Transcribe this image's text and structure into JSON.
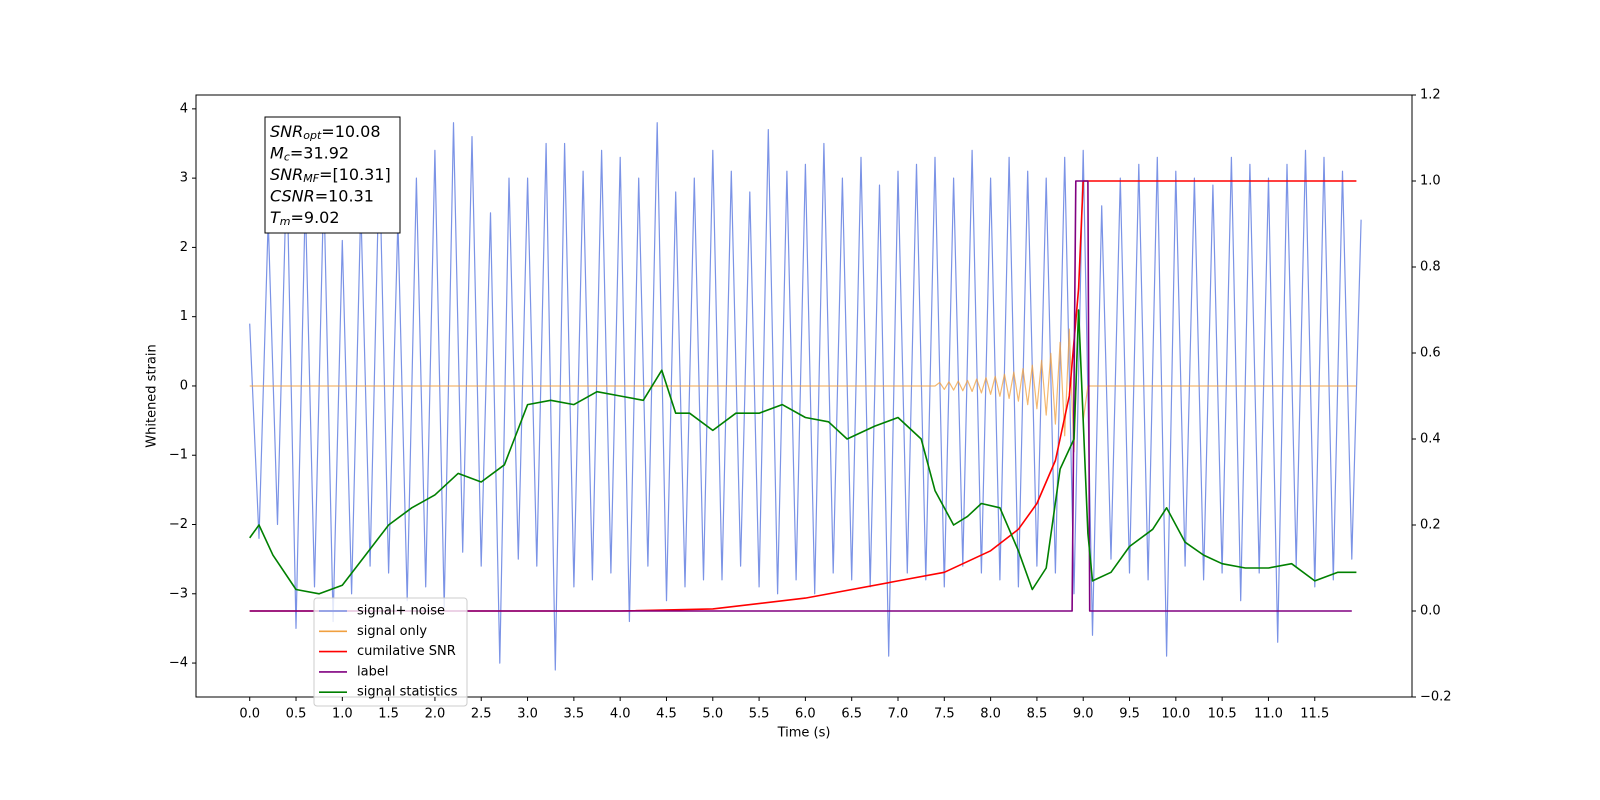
{
  "chart_data": {
    "type": "line",
    "xlabel": "Time (s)",
    "ylabel": "Whitened strain",
    "xlim": [
      -0.58,
      12.55
    ],
    "ylim": [
      -4.49,
      4.2
    ],
    "y2lim": [
      -0.2,
      1.2
    ],
    "xticks": [
      {
        "value": 0,
        "label": "0.0"
      },
      0.5,
      {
        "value": 1,
        "label": "1.0"
      },
      1.5,
      {
        "value": 2,
        "label": "2.0"
      },
      2.5,
      {
        "value": 3,
        "label": "3.0"
      },
      3.5,
      {
        "value": 4,
        "label": "4.0"
      },
      4.5,
      {
        "value": 5,
        "label": "5.0"
      },
      5.5,
      {
        "value": 6,
        "label": "6.0"
      },
      6.5,
      {
        "value": 7,
        "label": "7.0"
      },
      7.5,
      {
        "value": 8,
        "label": "8.0"
      },
      8.5,
      {
        "value": 9,
        "label": "9.0"
      },
      9.5,
      {
        "value": 10,
        "label": "10.0"
      },
      10.5,
      {
        "value": 11,
        "label": "11.0"
      },
      11.5
    ],
    "yticks": [
      {
        "value": -4,
        "label": "−4"
      },
      {
        "value": -3,
        "label": "−3"
      },
      {
        "value": -2,
        "label": "−2"
      },
      {
        "value": -1,
        "label": "−1"
      },
      0,
      1,
      2,
      3,
      4
    ],
    "y2ticks": [
      {
        "value": -0.2,
        "label": "−0.2"
      },
      {
        "value": 0,
        "label": "0.0"
      },
      0.2,
      0.4,
      0.6,
      0.8,
      {
        "value": 1,
        "label": "1.0"
      },
      1.2
    ],
    "annotation": [
      {
        "main": "SNR",
        "sub": "opt",
        "value": "=10.08"
      },
      {
        "main": "M",
        "sub": "c",
        "value": "=31.92"
      },
      {
        "main": "SNR",
        "sub": "MF",
        "value": "=[10.31]"
      },
      {
        "main": "CSNR",
        "sub": "",
        "value": "=10.31"
      },
      {
        "main": "T",
        "sub": "m",
        "value": "=9.02"
      }
    ],
    "series": [
      {
        "name": "signal+ noise",
        "color": "#7b93e6",
        "axis": "y",
        "x": [
          0.0,
          0.1,
          0.2,
          0.3,
          0.4,
          0.5,
          0.6,
          0.7,
          0.8,
          0.9,
          1.0,
          1.1,
          1.2,
          1.3,
          1.4,
          1.5,
          1.6,
          1.7,
          1.8,
          1.9,
          2.0,
          2.1,
          2.2,
          2.3,
          2.4,
          2.5,
          2.6,
          2.7,
          2.8,
          2.9,
          3.0,
          3.1,
          3.2,
          3.3,
          3.4,
          3.5,
          3.6,
          3.7,
          3.8,
          3.9,
          4.0,
          4.1,
          4.2,
          4.3,
          4.4,
          4.5,
          4.6,
          4.7,
          4.8,
          4.9,
          5.0,
          5.1,
          5.2,
          5.3,
          5.4,
          5.5,
          5.6,
          5.7,
          5.8,
          5.9,
          6.0,
          6.1,
          6.2,
          6.3,
          6.4,
          6.5,
          6.6,
          6.7,
          6.8,
          6.9,
          7.0,
          7.1,
          7.2,
          7.3,
          7.4,
          7.5,
          7.6,
          7.7,
          7.8,
          7.9,
          8.0,
          8.1,
          8.2,
          8.3,
          8.4,
          8.5,
          8.6,
          8.7,
          8.8,
          8.9,
          9.0,
          9.1,
          9.2,
          9.3,
          9.4,
          9.5,
          9.6,
          9.7,
          9.8,
          9.9,
          10.0,
          10.1,
          10.2,
          10.3,
          10.4,
          10.5,
          10.6,
          10.7,
          10.8,
          10.9,
          11.0,
          11.1,
          11.2,
          11.3,
          11.4,
          11.5,
          11.6,
          11.7,
          11.8,
          11.9,
          12.0
        ],
        "values": [
          0.9,
          -2.2,
          2.4,
          -2.0,
          3.2,
          -3.5,
          2.7,
          -2.9,
          2.9,
          -3.4,
          2.1,
          -3.0,
          2.6,
          -2.6,
          3.3,
          -2.7,
          2.4,
          -3.1,
          3.0,
          -2.9,
          3.4,
          -3.2,
          3.8,
          -2.4,
          3.6,
          -2.6,
          2.5,
          -4.0,
          3.0,
          -2.5,
          3.0,
          -2.6,
          3.5,
          -4.1,
          3.5,
          -2.9,
          3.1,
          -2.8,
          3.4,
          -2.7,
          3.3,
          -3.4,
          3.0,
          -2.6,
          3.8,
          -3.1,
          2.8,
          -2.9,
          3.0,
          -2.8,
          3.4,
          -2.8,
          3.1,
          -2.6,
          2.8,
          -2.9,
          3.7,
          -3.0,
          3.1,
          -2.8,
          3.2,
          -3.0,
          3.5,
          -2.7,
          3.0,
          -2.8,
          3.3,
          -2.9,
          2.9,
          -3.9,
          3.1,
          -2.7,
          3.2,
          -2.8,
          3.3,
          -2.9,
          3.0,
          -2.6,
          3.4,
          -2.7,
          3.0,
          -2.8,
          3.3,
          -2.9,
          3.1,
          -2.6,
          3.0,
          -2.7,
          3.3,
          -3.0,
          3.4,
          -3.6,
          2.6,
          -2.5,
          3.0,
          -2.7,
          3.2,
          -2.8,
          3.3,
          -3.9,
          3.1,
          -2.6,
          3.0,
          -2.8,
          2.9,
          -2.7,
          3.3,
          -3.1,
          3.2,
          -2.7,
          3.0,
          -3.7,
          3.2,
          -2.6,
          3.4,
          -2.9,
          3.3,
          -2.8,
          3.1,
          -2.5,
          2.4
        ]
      },
      {
        "name": "signal only",
        "color": "#f0a040",
        "axis": "y",
        "x": [
          0,
          7.4,
          7.45,
          7.5,
          7.55,
          7.6,
          7.65,
          7.7,
          7.75,
          7.8,
          7.85,
          7.9,
          7.95,
          8.0,
          8.05,
          8.1,
          8.15,
          8.2,
          8.25,
          8.3,
          8.35,
          8.4,
          8.45,
          8.5,
          8.55,
          8.6,
          8.65,
          8.7,
          8.75,
          8.8,
          8.85,
          8.9,
          8.95,
          9.0,
          9.05,
          11.95
        ],
        "values": [
          0,
          0,
          0.05,
          -0.05,
          0.06,
          -0.06,
          0.07,
          -0.07,
          0.08,
          -0.08,
          0.1,
          -0.1,
          0.12,
          -0.12,
          0.14,
          -0.15,
          0.17,
          -0.18,
          0.2,
          -0.22,
          0.25,
          -0.27,
          0.3,
          -0.33,
          0.37,
          -0.42,
          0.47,
          -0.55,
          0.63,
          -0.72,
          0.82,
          -0.95,
          1.1,
          -0.5,
          0,
          0
        ]
      },
      {
        "name": "cumilative SNR",
        "color": "#ff0000",
        "axis": "y2",
        "x": [
          0,
          4,
          5,
          6,
          7,
          7.5,
          8,
          8.3,
          8.5,
          8.7,
          8.85,
          8.95,
          9.0,
          11.95
        ],
        "values": [
          0,
          0,
          0.005,
          0.03,
          0.07,
          0.09,
          0.14,
          0.19,
          0.25,
          0.35,
          0.5,
          0.75,
          1.0,
          1.0
        ]
      },
      {
        "name": "label",
        "color": "#800080",
        "axis": "y2",
        "x": [
          0,
          8.88,
          8.92,
          9.05,
          9.07,
          11.9
        ],
        "values": [
          0,
          0,
          1,
          1,
          0,
          0
        ]
      },
      {
        "name": "signal statistics",
        "color": "#008000",
        "axis": "y2",
        "x": [
          0.0,
          0.1,
          0.25,
          0.5,
          0.75,
          1.0,
          1.25,
          1.5,
          1.75,
          2.0,
          2.25,
          2.5,
          2.75,
          3.0,
          3.25,
          3.5,
          3.75,
          4.0,
          4.25,
          4.45,
          4.6,
          4.75,
          5.0,
          5.25,
          5.5,
          5.75,
          6.0,
          6.25,
          6.45,
          6.75,
          7.0,
          7.25,
          7.4,
          7.6,
          7.75,
          7.9,
          8.1,
          8.3,
          8.45,
          8.6,
          8.75,
          8.9,
          8.95,
          9.05,
          9.1,
          9.3,
          9.5,
          9.75,
          9.9,
          10.1,
          10.3,
          10.5,
          10.75,
          11.0,
          11.25,
          11.5,
          11.75,
          11.95
        ],
        "values": [
          0.17,
          0.2,
          0.13,
          0.05,
          0.04,
          0.06,
          0.13,
          0.2,
          0.24,
          0.27,
          0.32,
          0.3,
          0.34,
          0.48,
          0.49,
          0.48,
          0.51,
          0.5,
          0.49,
          0.56,
          0.46,
          0.46,
          0.42,
          0.46,
          0.46,
          0.48,
          0.45,
          0.44,
          0.4,
          0.43,
          0.45,
          0.4,
          0.28,
          0.2,
          0.22,
          0.25,
          0.24,
          0.14,
          0.05,
          0.1,
          0.33,
          0.4,
          0.7,
          0.18,
          0.07,
          0.09,
          0.15,
          0.19,
          0.24,
          0.16,
          0.13,
          0.11,
          0.1,
          0.1,
          0.11,
          0.07,
          0.09,
          0.09
        ]
      }
    ]
  }
}
